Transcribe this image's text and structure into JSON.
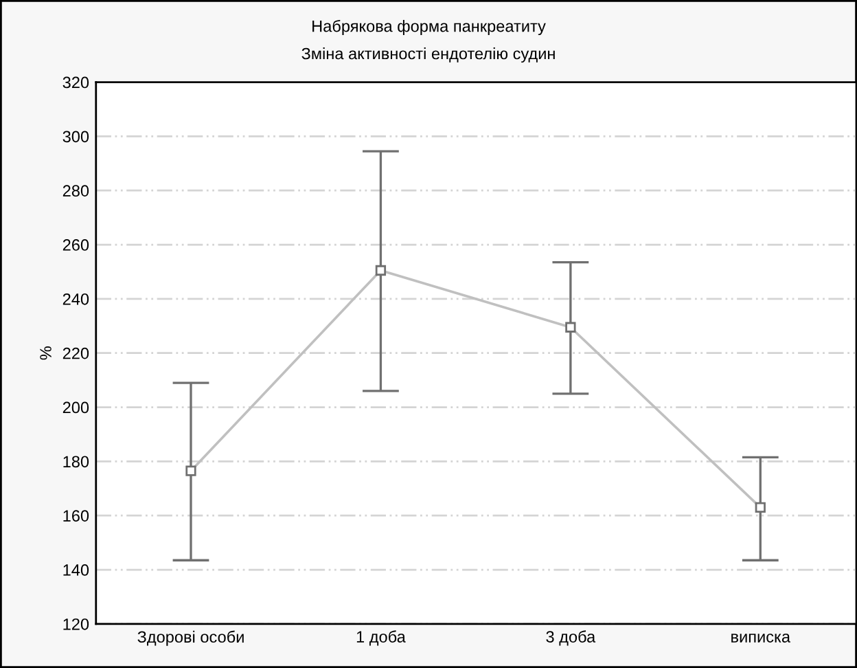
{
  "chart_data": {
    "type": "line",
    "title": "Набрякова форма панкреатиту",
    "subtitle": "Зміна активності ендотелію судин",
    "ylabel": "%",
    "categories": [
      "Здорові особи",
      "1 доба",
      "3 доба",
      "виписка"
    ],
    "series": [
      {
        "color": "#c0c0c0",
        "values": [
          176.5,
          250.5,
          229.5,
          163
        ],
        "errors": [
          [
            143.5,
            209
          ],
          [
            206,
            294.5
          ],
          [
            205,
            253.5
          ],
          [
            143.5,
            181.5
          ]
        ]
      }
    ],
    "ylim": [
      120,
      320
    ],
    "yticks": [
      120,
      140,
      160,
      180,
      200,
      220,
      240,
      260,
      280,
      300,
      320
    ],
    "grid": "y",
    "marker": "square",
    "line_style": "solid"
  }
}
